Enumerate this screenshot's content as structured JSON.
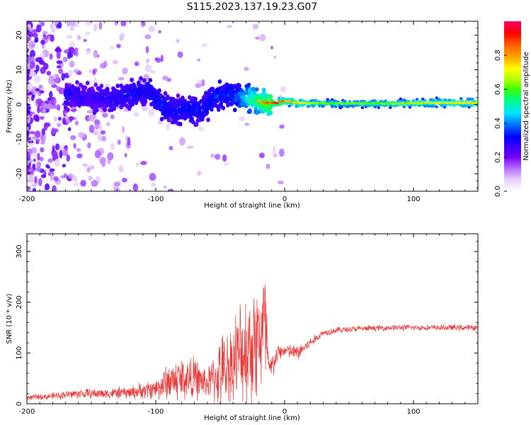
{
  "title": "S115.2023.137.19.23.G07",
  "chart_data": [
    {
      "type": "heatmap",
      "xlabel": "Height of straight line (km)",
      "ylabel": "Frequency (Hz)",
      "xlim": [
        -200,
        150
      ],
      "ylim": [
        -25,
        24
      ],
      "xticks": [
        -200,
        -100,
        0,
        100
      ],
      "yticks": [
        -20,
        -10,
        0,
        10,
        20
      ],
      "colorbar": {
        "label": "Normalized spectral amplitude",
        "range": [
          0,
          1
        ],
        "ticks": [
          "0.0",
          "0.2",
          "0.4",
          "0.6",
          "0.8"
        ],
        "colors": [
          "#ffffff",
          "#e6ccff",
          "#b266ff",
          "#7a00ff",
          "#3a00ff",
          "#0000ff",
          "#0080ff",
          "#00e5ff",
          "#00ff80",
          "#3cff00",
          "#b3ff00",
          "#ffff00",
          "#ffb000",
          "#ff6000",
          "#ff0000",
          "#ff0066"
        ]
      },
      "ridge": {
        "x": [
          -165,
          -150,
          -135,
          -120,
          -105,
          -95,
          -85,
          -75,
          -65,
          -55,
          -45,
          -35,
          -25,
          -15,
          -5,
          0,
          10,
          30,
          60,
          90,
          120,
          150
        ],
        "f": [
          3,
          2,
          1.5,
          3,
          4,
          0,
          -2,
          -1,
          -2,
          2,
          3,
          2,
          1.5,
          0.5,
          0.5,
          1,
          0.5,
          0.3,
          0.3,
          0.3,
          0.5,
          0.5
        ],
        "amplitude": [
          0.25,
          0.2,
          0.25,
          0.3,
          0.3,
          0.35,
          0.3,
          0.35,
          0.3,
          0.35,
          0.35,
          0.45,
          0.7,
          0.85,
          0.9,
          0.8,
          0.75,
          0.6,
          0.6,
          0.65,
          0.7,
          0.75
        ]
      }
    },
    {
      "type": "line",
      "xlabel": "Height of straight line (km)",
      "ylabel": "SNR (10 * v/v)",
      "xlim": [
        -200,
        150
      ],
      "ylim": [
        0,
        335
      ],
      "xticks": [
        -200,
        -100,
        0,
        100
      ],
      "yticks": [
        0,
        100,
        200,
        300
      ],
      "line_color": "#ee3333",
      "envelope": {
        "x": [
          -200,
          -180,
          -160,
          -140,
          -120,
          -100,
          -90,
          -80,
          -70,
          -60,
          -50,
          -40,
          -30,
          -20,
          -15,
          -12,
          -5,
          0,
          10,
          20,
          30,
          40,
          60,
          80,
          100,
          120,
          150
        ],
        "mean": [
          12,
          15,
          20,
          20,
          22,
          30,
          45,
          50,
          50,
          40,
          60,
          80,
          110,
          130,
          150,
          60,
          100,
          105,
          100,
          120,
          140,
          145,
          148,
          150,
          150,
          150,
          150
        ],
        "spread": [
          6,
          8,
          12,
          12,
          15,
          25,
          45,
          55,
          50,
          35,
          80,
          110,
          140,
          150,
          170,
          40,
          20,
          15,
          20,
          12,
          8,
          8,
          7,
          7,
          7,
          7,
          7
        ]
      }
    }
  ]
}
